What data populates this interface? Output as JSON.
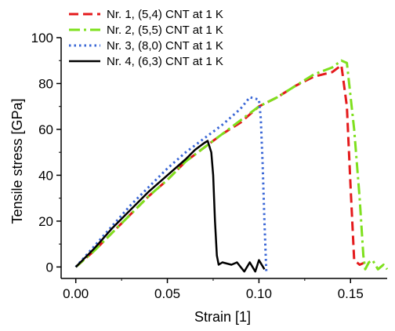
{
  "chart_data": {
    "type": "line",
    "xlabel": "Strain [1]",
    "ylabel": "Tensile stress [GPa]",
    "xlim": [
      -0.008,
      0.17
    ],
    "ylim": [
      -5,
      100
    ],
    "x_ticks": [
      0.0,
      0.05,
      0.1,
      0.15
    ],
    "x_tick_labels": [
      "0.00",
      "0.05",
      "0.10",
      "0.15"
    ],
    "y_ticks": [
      0,
      20,
      40,
      60,
      80,
      100
    ],
    "y_tick_labels": [
      "0",
      "20",
      "40",
      "60",
      "80",
      "100"
    ],
    "grid": false,
    "legend_position": "top-left",
    "series": [
      {
        "name": "Nr. 1, (5,4) CNT at 1 K",
        "color": "#e41a1c",
        "dash": "dash",
        "points": [
          [
            0.0,
            0
          ],
          [
            0.01,
            7
          ],
          [
            0.02,
            15
          ],
          [
            0.03,
            23
          ],
          [
            0.04,
            31
          ],
          [
            0.05,
            38
          ],
          [
            0.06,
            46
          ],
          [
            0.07,
            52
          ],
          [
            0.08,
            58
          ],
          [
            0.09,
            63
          ],
          [
            0.1,
            70
          ],
          [
            0.11,
            74
          ],
          [
            0.12,
            79
          ],
          [
            0.13,
            83
          ],
          [
            0.14,
            85
          ],
          [
            0.145,
            88
          ],
          [
            0.148,
            70
          ],
          [
            0.15,
            35
          ],
          [
            0.152,
            3
          ],
          [
            0.155,
            1
          ],
          [
            0.158,
            2
          ],
          [
            0.16,
            1
          ]
        ]
      },
      {
        "name": "Nr. 2, (5,5) CNT at 1 K",
        "color": "#7ee01d",
        "dash": "dashdot",
        "points": [
          [
            0.0,
            0
          ],
          [
            0.01,
            7
          ],
          [
            0.02,
            15
          ],
          [
            0.03,
            23
          ],
          [
            0.04,
            31
          ],
          [
            0.05,
            38
          ],
          [
            0.06,
            46
          ],
          [
            0.07,
            52
          ],
          [
            0.08,
            58
          ],
          [
            0.09,
            64
          ],
          [
            0.1,
            70
          ],
          [
            0.11,
            74
          ],
          [
            0.12,
            79
          ],
          [
            0.13,
            84
          ],
          [
            0.14,
            87
          ],
          [
            0.145,
            90
          ],
          [
            0.148,
            89
          ],
          [
            0.152,
            60
          ],
          [
            0.155,
            30
          ],
          [
            0.157,
            5
          ],
          [
            0.158,
            -1
          ],
          [
            0.16,
            2
          ],
          [
            0.162,
            3
          ],
          [
            0.165,
            -1
          ],
          [
            0.168,
            1
          ],
          [
            0.17,
            -1
          ]
        ]
      },
      {
        "name": "Nr. 3, (8,0) CNT at 1 K",
        "color": "#3a67d6",
        "dash": "dot",
        "points": [
          [
            0.0,
            0
          ],
          [
            0.01,
            9
          ],
          [
            0.02,
            18
          ],
          [
            0.03,
            27
          ],
          [
            0.04,
            35
          ],
          [
            0.05,
            43
          ],
          [
            0.06,
            50
          ],
          [
            0.07,
            56
          ],
          [
            0.08,
            62
          ],
          [
            0.09,
            69
          ],
          [
            0.095,
            74
          ],
          [
            0.1,
            73
          ],
          [
            0.101,
            65
          ],
          [
            0.102,
            45
          ],
          [
            0.103,
            20
          ],
          [
            0.104,
            -2
          ]
        ]
      },
      {
        "name": "Nr. 4, (6,3) CNT at 1 K",
        "color": "#000000",
        "dash": "solid",
        "points": [
          [
            0.0,
            0
          ],
          [
            0.01,
            8
          ],
          [
            0.02,
            17
          ],
          [
            0.03,
            25
          ],
          [
            0.04,
            33
          ],
          [
            0.05,
            40
          ],
          [
            0.06,
            47
          ],
          [
            0.065,
            51
          ],
          [
            0.07,
            54
          ],
          [
            0.072,
            55
          ],
          [
            0.074,
            50
          ],
          [
            0.075,
            40
          ],
          [
            0.076,
            20
          ],
          [
            0.077,
            5
          ],
          [
            0.078,
            1
          ],
          [
            0.08,
            2
          ],
          [
            0.085,
            1
          ],
          [
            0.088,
            2
          ],
          [
            0.09,
            0
          ],
          [
            0.092,
            -2
          ],
          [
            0.095,
            2
          ],
          [
            0.098,
            -2
          ],
          [
            0.1,
            3
          ],
          [
            0.103,
            -1
          ]
        ]
      }
    ]
  }
}
